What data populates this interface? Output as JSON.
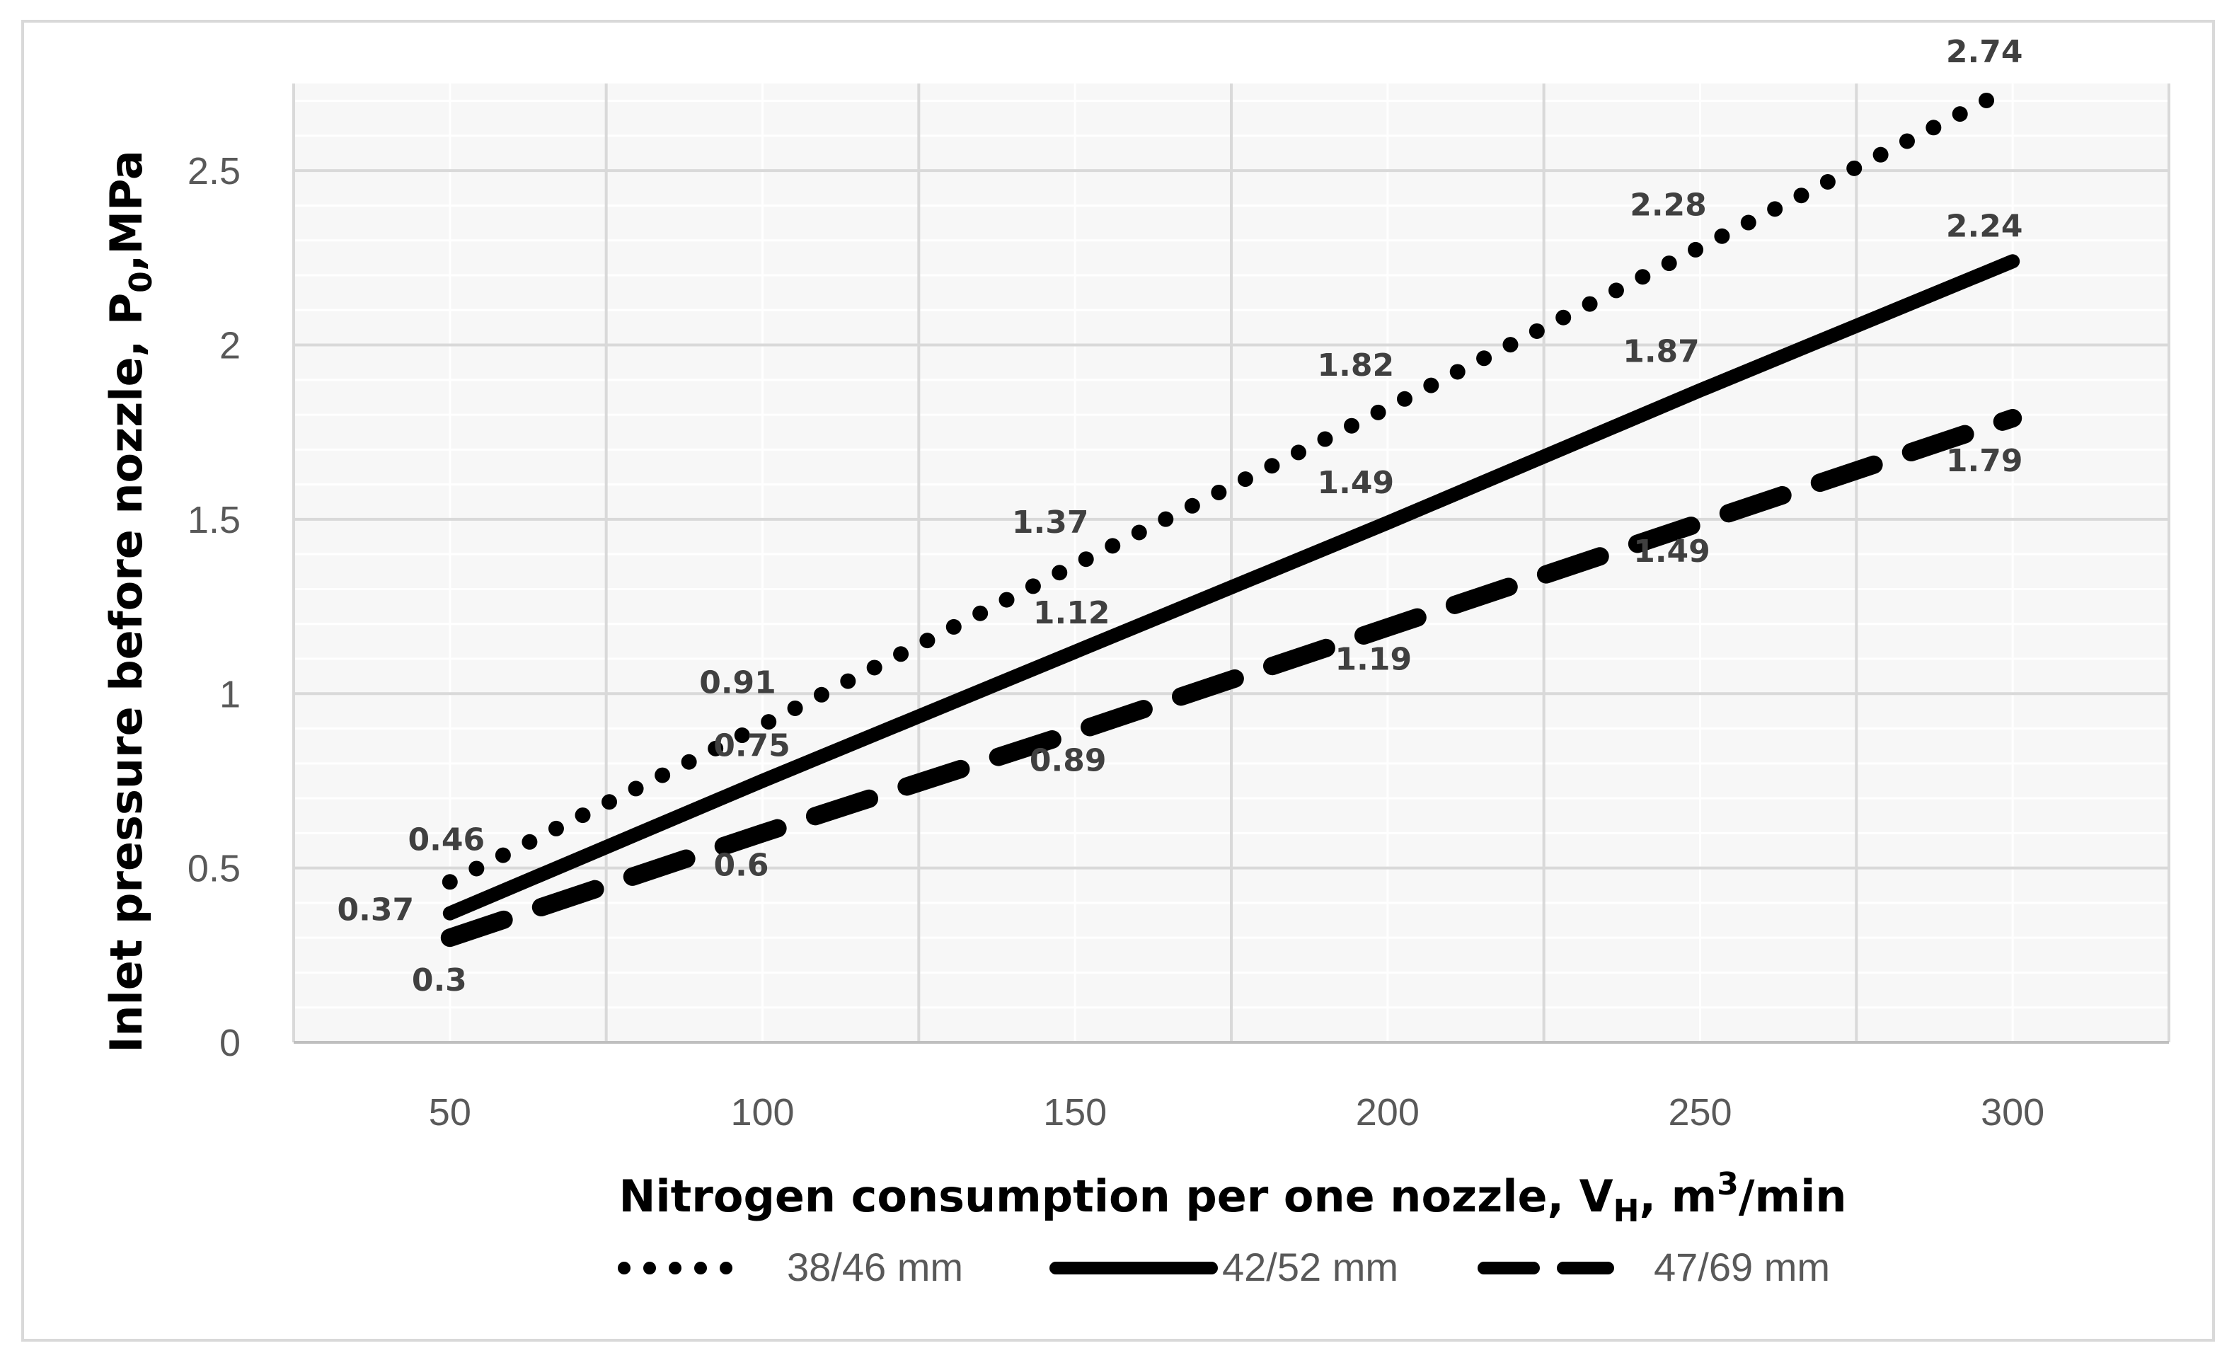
{
  "chart_data": {
    "type": "line",
    "title": "",
    "xlabel": "Nitrogen consumption per one nozzle, V",
    "xlabel_sub": "H",
    "xlabel_tail": ", m",
    "xlabel_sup": "3",
    "xlabel_end": "/min",
    "ylabel": "Inlet pressure before nozzle, P",
    "ylabel_sub": "0",
    "ylabel_end": ",MPa",
    "x": [
      50,
      100,
      150,
      200,
      250,
      300
    ],
    "x_tick_labels": [
      "50",
      "100",
      "150",
      "200",
      "250",
      "300"
    ],
    "y_tick_labels": [
      "0",
      "0.5",
      "1",
      "1.5",
      "2",
      "2.5"
    ],
    "ylim": [
      0,
      2.75
    ],
    "grid": true,
    "legend_position": "bottom",
    "series": [
      {
        "name": "38/46 mm",
        "style": "dotted",
        "color": "#000000",
        "values": [
          0.46,
          0.91,
          1.37,
          1.82,
          2.28,
          2.74
        ],
        "labels": [
          "0.46",
          "0.91",
          "1.37",
          "1.82",
          "2.28",
          "2.74"
        ]
      },
      {
        "name": "42/52 mm",
        "style": "solid",
        "color": "#000000",
        "values": [
          0.37,
          0.75,
          1.12,
          1.49,
          1.87,
          2.24
        ],
        "labels": [
          "0.37",
          "0.75",
          "1.12",
          "1.49",
          "1.87",
          "2.24"
        ]
      },
      {
        "name": "47/69 mm",
        "style": "dashed",
        "color": "#000000",
        "values": [
          0.3,
          0.6,
          0.89,
          1.19,
          1.49,
          1.79
        ],
        "labels": [
          "0.3",
          "0.6",
          "0.89",
          "1.19",
          "1.49",
          "1.79"
        ]
      }
    ]
  }
}
